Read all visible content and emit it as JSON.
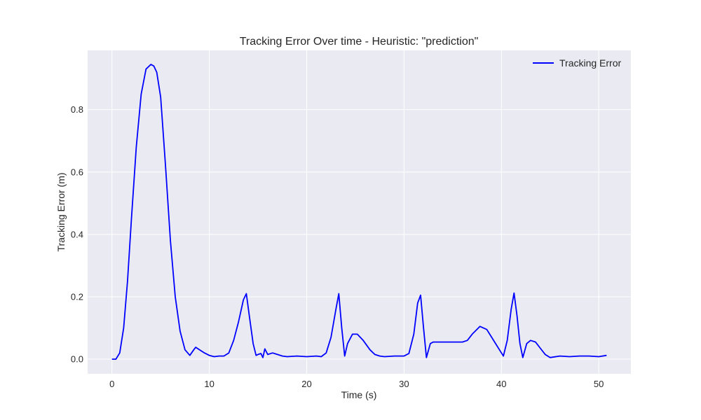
{
  "chart_data": {
    "type": "line",
    "title": "Tracking Error Over time - Heuristic: \"prediction\"",
    "xlabel": "Time (s)",
    "ylabel": "Tracking Error (m)",
    "xlim": [
      -2.5,
      53.3
    ],
    "ylim": [
      -0.047,
      0.99
    ],
    "xticks": [
      0,
      10,
      20,
      30,
      40,
      50
    ],
    "yticks": [
      0.0,
      0.2,
      0.4,
      0.6,
      0.8
    ],
    "xtick_labels": [
      "0",
      "10",
      "20",
      "30",
      "40",
      "50"
    ],
    "ytick_labels": [
      "0.0",
      "0.2",
      "0.4",
      "0.6",
      "0.8"
    ],
    "grid": true,
    "legend_position": "top-right",
    "colors": {
      "background": "#eaeaf2",
      "grid": "#ffffff",
      "line": "#0000ff"
    },
    "series": [
      {
        "name": "Tracking Error",
        "x": [
          0,
          0.4,
          0.8,
          1.2,
          1.6,
          2.0,
          2.5,
          3.0,
          3.5,
          4.0,
          4.3,
          4.6,
          5.0,
          5.5,
          6.0,
          6.5,
          7.0,
          7.5,
          8.0,
          8.4,
          8.6,
          9.0,
          9.5,
          10.0,
          10.5,
          11.0,
          11.5,
          12.0,
          12.5,
          13.0,
          13.5,
          13.8,
          14.1,
          14.5,
          14.8,
          15.0,
          15.3,
          15.5,
          15.7,
          16.0,
          16.5,
          17.0,
          17.5,
          18.0,
          19.0,
          20.0,
          21.0,
          21.5,
          22.0,
          22.5,
          23.0,
          23.3,
          23.6,
          23.9,
          24.2,
          24.7,
          25.2,
          25.8,
          26.5,
          27.0,
          27.5,
          28.0,
          29.0,
          30.0,
          30.5,
          31.0,
          31.4,
          31.7,
          32.0,
          32.3,
          32.7,
          33.0,
          34.0,
          35.0,
          36.0,
          36.5,
          37.0,
          37.8,
          38.5,
          39.0,
          39.5,
          40.0,
          40.2,
          40.6,
          41.0,
          41.3,
          41.6,
          41.9,
          42.2,
          42.6,
          43.0,
          43.5,
          44.0,
          44.5,
          45.0,
          46.0,
          47.0,
          48.0,
          49.0,
          50.0,
          50.8
        ],
        "values": [
          0.0,
          0.0,
          0.02,
          0.1,
          0.25,
          0.45,
          0.68,
          0.85,
          0.93,
          0.945,
          0.94,
          0.92,
          0.84,
          0.62,
          0.38,
          0.2,
          0.09,
          0.03,
          0.012,
          0.03,
          0.038,
          0.03,
          0.02,
          0.012,
          0.008,
          0.01,
          0.01,
          0.02,
          0.06,
          0.12,
          0.19,
          0.21,
          0.14,
          0.05,
          0.012,
          0.015,
          0.018,
          0.005,
          0.033,
          0.015,
          0.02,
          0.015,
          0.01,
          0.008,
          0.01,
          0.008,
          0.01,
          0.008,
          0.02,
          0.07,
          0.16,
          0.21,
          0.1,
          0.01,
          0.05,
          0.08,
          0.08,
          0.06,
          0.03,
          0.015,
          0.01,
          0.008,
          0.01,
          0.01,
          0.018,
          0.08,
          0.18,
          0.205,
          0.1,
          0.005,
          0.05,
          0.055,
          0.055,
          0.055,
          0.055,
          0.06,
          0.08,
          0.105,
          0.095,
          0.07,
          0.045,
          0.02,
          0.01,
          0.06,
          0.16,
          0.212,
          0.14,
          0.05,
          0.005,
          0.05,
          0.06,
          0.055,
          0.035,
          0.015,
          0.005,
          0.01,
          0.008,
          0.01,
          0.01,
          0.008,
          0.012
        ]
      }
    ]
  }
}
